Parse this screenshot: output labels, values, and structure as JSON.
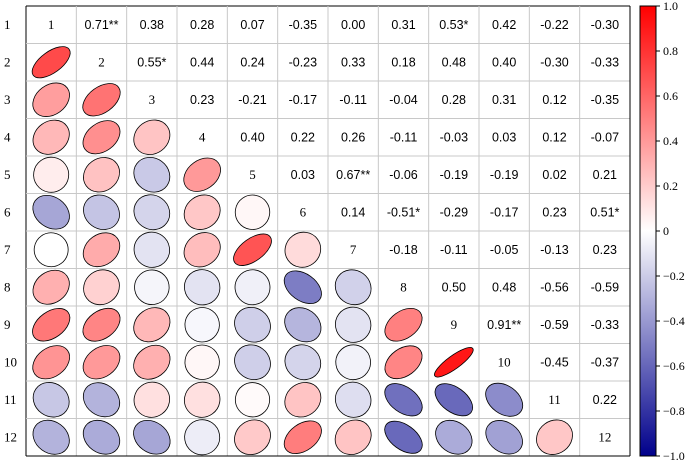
{
  "chart_data": {
    "type": "heatmap",
    "subtype": "correlation-matrix",
    "labels": [
      "1",
      "2",
      "3",
      "4",
      "5",
      "6",
      "7",
      "8",
      "9",
      "10",
      "11",
      "12"
    ],
    "upper_triangle_display": "numbers",
    "lower_triangle_display": "ellipses",
    "upper_text": [
      [
        "1",
        "0.71**",
        "0.38",
        "0.28",
        "0.07",
        "-0.35",
        "0.00",
        "0.31",
        "0.53*",
        "0.42",
        "-0.22",
        "-0.30"
      ],
      [
        "",
        "2",
        "0.55*",
        "0.44",
        "0.24",
        "-0.23",
        "0.33",
        "0.18",
        "0.48",
        "0.40",
        "-0.30",
        "-0.33"
      ],
      [
        "",
        "",
        "3",
        "0.23",
        "-0.21",
        "-0.17",
        "-0.11",
        "-0.04",
        "0.28",
        "0.31",
        "0.12",
        "-0.35"
      ],
      [
        "",
        "",
        "",
        "4",
        "0.40",
        "0.22",
        "0.26",
        "-0.11",
        "-0.03",
        "0.03",
        "0.12",
        "-0.07"
      ],
      [
        "",
        "",
        "",
        "",
        "5",
        "0.03",
        "0.67**",
        "-0.06",
        "-0.19",
        "-0.19",
        "0.02",
        "0.21"
      ],
      [
        "",
        "",
        "",
        "",
        "",
        "6",
        "0.14",
        "-0.51*",
        "-0.29",
        "-0.17",
        "0.23",
        "0.51*"
      ],
      [
        "",
        "",
        "",
        "",
        "",
        "",
        "7",
        "-0.18",
        "-0.11",
        "-0.05",
        "-0.13",
        "0.23"
      ],
      [
        "",
        "",
        "",
        "",
        "",
        "",
        "",
        "8",
        "0.50",
        "0.48",
        "-0.56",
        "-0.59"
      ],
      [
        "",
        "",
        "",
        "",
        "",
        "",
        "",
        "",
        "9",
        "0.91**",
        "-0.59",
        "-0.33"
      ],
      [
        "",
        "",
        "",
        "",
        "",
        "",
        "",
        "",
        "",
        "10",
        "-0.45",
        "-0.37"
      ],
      [
        "",
        "",
        "",
        "",
        "",
        "",
        "",
        "",
        "",
        "",
        "11",
        "0.22"
      ],
      [
        "",
        "",
        "",
        "",
        "",
        "",
        "",
        "",
        "",
        "",
        "",
        "12"
      ]
    ],
    "matrix": [
      [
        1,
        0.71,
        0.38,
        0.28,
        0.07,
        -0.35,
        0.0,
        0.31,
        0.53,
        0.42,
        -0.22,
        -0.3
      ],
      [
        0.71,
        1,
        0.55,
        0.44,
        0.24,
        -0.23,
        0.33,
        0.18,
        0.48,
        0.4,
        -0.3,
        -0.33
      ],
      [
        0.38,
        0.55,
        1,
        0.23,
        -0.21,
        -0.17,
        -0.11,
        -0.04,
        0.28,
        0.31,
        0.12,
        -0.35
      ],
      [
        0.28,
        0.44,
        0.23,
        1,
        0.4,
        0.22,
        0.26,
        -0.11,
        -0.03,
        0.03,
        0.12,
        -0.07
      ],
      [
        0.07,
        0.24,
        -0.21,
        0.4,
        1,
        0.03,
        0.67,
        -0.06,
        -0.19,
        -0.19,
        0.02,
        0.21
      ],
      [
        -0.35,
        -0.23,
        -0.17,
        0.22,
        0.03,
        1,
        0.14,
        -0.51,
        -0.29,
        -0.17,
        0.23,
        0.51
      ],
      [
        0.0,
        0.33,
        -0.11,
        0.26,
        0.67,
        0.14,
        1,
        -0.18,
        -0.11,
        -0.05,
        -0.13,
        0.23
      ],
      [
        0.31,
        0.18,
        -0.04,
        -0.11,
        -0.06,
        -0.51,
        -0.18,
        1,
        0.5,
        0.48,
        -0.56,
        -0.59
      ],
      [
        0.53,
        0.48,
        0.28,
        -0.03,
        -0.19,
        -0.29,
        -0.11,
        0.5,
        1,
        0.91,
        -0.59,
        -0.33
      ],
      [
        0.42,
        0.4,
        0.31,
        0.03,
        -0.19,
        -0.17,
        -0.05,
        0.48,
        0.91,
        1,
        -0.45,
        -0.37
      ],
      [
        -0.22,
        -0.3,
        0.12,
        0.12,
        0.02,
        0.23,
        -0.13,
        -0.56,
        -0.59,
        -0.45,
        1,
        0.22
      ],
      [
        -0.3,
        -0.33,
        -0.35,
        -0.07,
        0.21,
        0.51,
        0.23,
        -0.59,
        -0.33,
        -0.37,
        0.22,
        1
      ]
    ],
    "colorbar": {
      "range": [
        -1.0,
        1.0
      ],
      "ticks": [
        "1.0",
        "0.8",
        "0.6",
        "0.4",
        "0.2",
        "0",
        "−0.2",
        "−0.4",
        "−0.6",
        "−0.8",
        "−1.0"
      ],
      "tick_values": [
        1.0,
        0.8,
        0.6,
        0.4,
        0.2,
        0,
        -0.2,
        -0.4,
        -0.6,
        -0.8,
        -1.0
      ],
      "color_low": "#00008b",
      "color_mid": "#ffffff",
      "color_high": "#ff0000"
    },
    "grid": true
  }
}
